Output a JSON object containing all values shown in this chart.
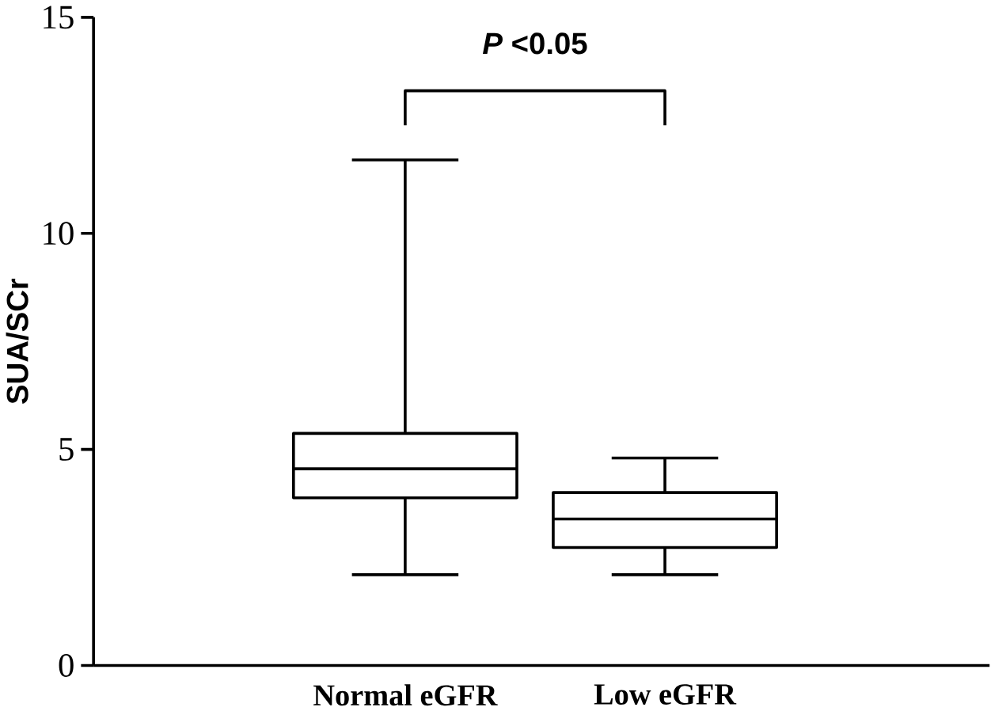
{
  "chart_data": {
    "type": "box",
    "ylabel": "SUA/SCr",
    "categories": [
      "Normal eGFR",
      "Low eGFR"
    ],
    "boxes": [
      {
        "low": 2.1,
        "q1": 3.88,
        "median": 4.55,
        "q3": 5.37,
        "high": 11.7
      },
      {
        "low": 2.1,
        "q1": 2.73,
        "median": 3.39,
        "q3": 4.0,
        "high": 4.8
      }
    ],
    "color": "#000000",
    "ylim": [
      0,
      15
    ],
    "yticks": [
      0,
      5,
      10,
      15
    ],
    "annotations": [
      "*P* <0.05"
    ]
  }
}
